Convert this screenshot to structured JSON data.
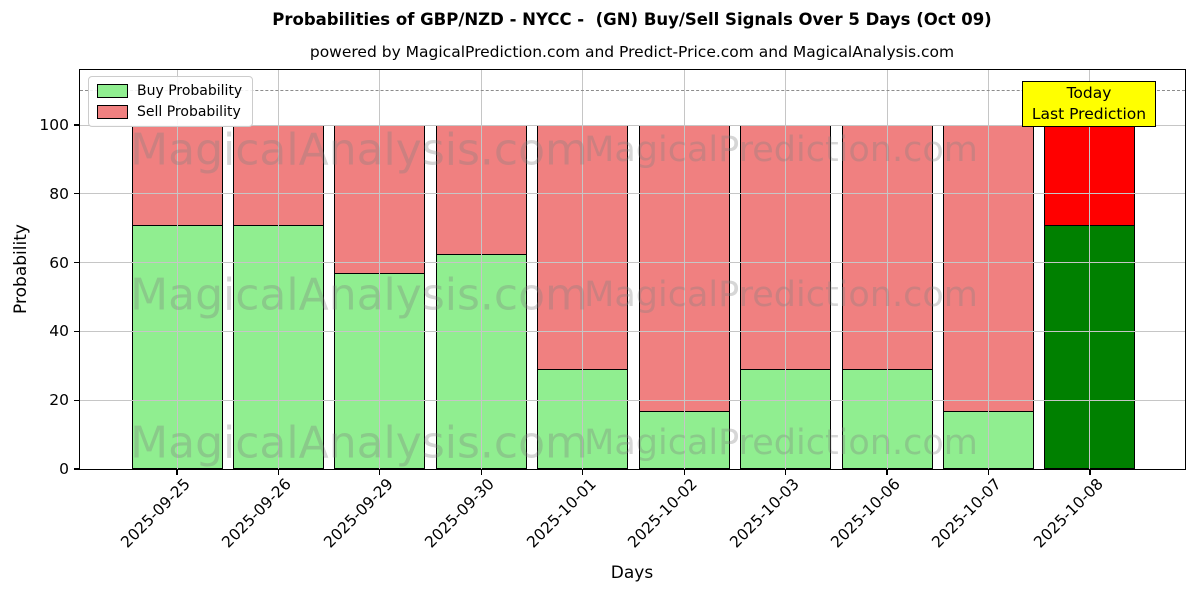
{
  "title": "Probabilities of GBP/NZD - NYCC -  (GN) Buy/Sell Signals Over 5 Days (Oct 09)",
  "subtitle": "powered by MagicalPrediction.com and Predict-Price.com and MagicalAnalysis.com",
  "legend": [
    {
      "label": "Buy Probability",
      "color": "#90EE90"
    },
    {
      "label": "Sell Probability",
      "color": "#F08080"
    }
  ],
  "annotation": {
    "line1": "Today",
    "line2": "Last Prediction",
    "bg_color": "#FFFF00",
    "border_color": "#000000"
  },
  "watermarks": {
    "left": "MagicalAnalysis.com",
    "right": "MagicalPrediction.com"
  },
  "chart_data": {
    "type": "bar",
    "stacked": true,
    "title": "Probabilities of GBP/NZD - NYCC -  (GN) Buy/Sell Signals Over 5 Days (Oct 09)",
    "xlabel": "Days",
    "ylabel": "Probability",
    "categories": [
      "2025-09-25",
      "2025-09-26",
      "2025-09-29",
      "2025-09-30",
      "2025-10-01",
      "2025-10-02",
      "2025-10-03",
      "2025-10-06",
      "2025-10-07",
      "2025-10-08"
    ],
    "series": [
      {
        "name": "Buy Probability",
        "color": "#90EE90",
        "last_bar_color": "#008000",
        "values": [
          71,
          71,
          57,
          62.5,
          29,
          17,
          29,
          29,
          17,
          71
        ]
      },
      {
        "name": "Sell Probability",
        "color": "#F08080",
        "last_bar_color": "#FF0000",
        "values": [
          29,
          29,
          43,
          37.5,
          71,
          83,
          71,
          71,
          83,
          29
        ]
      }
    ],
    "ylim": [
      0,
      116
    ],
    "yticks": [
      0,
      20,
      40,
      60,
      80,
      100
    ],
    "dashed_line_y": 110,
    "grid": true,
    "legend_position": "upper left",
    "bar_edge_color": "#000000"
  }
}
